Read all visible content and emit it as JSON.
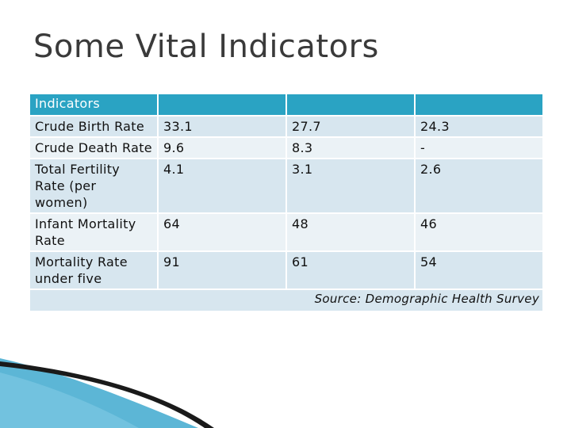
{
  "title": "Some Vital Indicators",
  "table": {
    "header": [
      "Indicators",
      "",
      "",
      ""
    ],
    "rows": [
      [
        "Crude Birth Rate",
        "33.1",
        "27.7",
        "24.3"
      ],
      [
        "Crude Death Rate",
        "9.6",
        "8.3",
        "-"
      ],
      [
        "Total Fertility Rate (per women)",
        "4.1",
        "3.1",
        "2.6"
      ],
      [
        "Infant Mortality Rate",
        "64",
        "48",
        "46"
      ],
      [
        "Mortality Rate under five",
        "91",
        "61",
        "54"
      ]
    ],
    "source": "Source: Demographic Health Survey"
  },
  "colors": {
    "header": "#2aa3c3",
    "row_odd": "#d7e6ef",
    "row_even": "#ebf2f6",
    "title": "#3a3a3a"
  }
}
